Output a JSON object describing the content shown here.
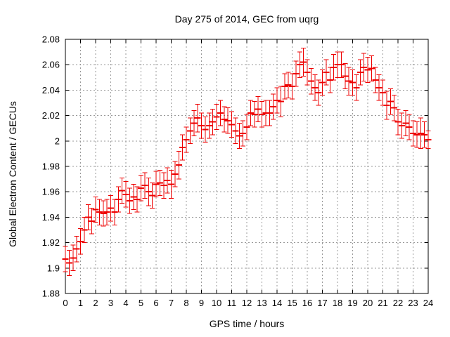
{
  "page": {
    "background": "#ffffff"
  },
  "chart_data": {
    "type": "errorbar",
    "title": "Day 275 of 2014, GEC from uqrg",
    "xlabel": "GPS time / hours",
    "ylabel": "Global Electron Content / GECUs",
    "xlim": [
      0,
      24
    ],
    "ylim": [
      1.88,
      2.08
    ],
    "grid": true,
    "legend": "none",
    "colors": {
      "series": "#ee0000",
      "grid": "#999999",
      "axis": "#000000",
      "text": "#000000"
    },
    "xticks": [
      0,
      1,
      2,
      3,
      4,
      5,
      6,
      7,
      8,
      9,
      10,
      11,
      12,
      13,
      14,
      15,
      16,
      17,
      18,
      19,
      20,
      21,
      22,
      23,
      24
    ],
    "xtick_labels": [
      "0",
      "1",
      "2",
      "3",
      "4",
      "5",
      "6",
      "7",
      "8",
      "9",
      "10",
      "11",
      "12",
      "13",
      "14",
      "15",
      "16",
      "17",
      "18",
      "19",
      "20",
      "21",
      "22",
      "23",
      "24"
    ],
    "yticks": [
      1.88,
      1.9,
      1.92,
      1.94,
      1.96,
      1.98,
      2,
      2.02,
      2.04,
      2.06,
      2.08
    ],
    "ytick_labels": [
      "1.88",
      "1.9",
      "1.92",
      "1.94",
      "1.96",
      "1.98",
      "2",
      "2.02",
      "2.04",
      "2.06",
      "2.08"
    ],
    "series": [
      {
        "name": "GEC",
        "x": [
          0,
          0.25,
          0.5,
          0.75,
          1,
          1.25,
          1.5,
          1.75,
          2,
          2.25,
          2.5,
          2.75,
          3,
          3.25,
          3.5,
          3.75,
          4,
          4.25,
          4.5,
          4.75,
          5,
          5.25,
          5.5,
          5.75,
          6,
          6.25,
          6.5,
          6.75,
          7,
          7.25,
          7.5,
          7.75,
          8,
          8.25,
          8.5,
          8.75,
          9,
          9.25,
          9.5,
          9.75,
          10,
          10.25,
          10.5,
          10.75,
          11,
          11.25,
          11.5,
          11.75,
          12,
          12.25,
          12.5,
          12.75,
          13,
          13.25,
          13.5,
          13.75,
          14,
          14.25,
          14.5,
          14.75,
          15,
          15.25,
          15.5,
          15.75,
          16,
          16.25,
          16.5,
          16.75,
          17,
          17.25,
          17.5,
          17.75,
          18,
          18.25,
          18.5,
          18.75,
          19,
          19.25,
          19.5,
          19.75,
          20,
          20.25,
          20.5,
          20.75,
          21,
          21.25,
          21.5,
          21.75,
          22,
          22.25,
          22.5,
          22.75,
          23,
          23.25,
          23.5,
          23.75,
          24
        ],
        "y": [
          1.907,
          1.904,
          1.908,
          1.915,
          1.921,
          1.93,
          1.94,
          1.937,
          1.946,
          1.944,
          1.943,
          1.944,
          1.947,
          1.944,
          1.954,
          1.961,
          1.958,
          1.953,
          1.956,
          1.954,
          1.963,
          1.965,
          1.96,
          1.957,
          1.966,
          1.967,
          1.965,
          1.969,
          1.966,
          1.974,
          1.981,
          1.995,
          2.001,
          2.008,
          2.014,
          2.018,
          2.012,
          2.009,
          2.012,
          2.015,
          2.019,
          2.022,
          2.017,
          2.016,
          2.013,
          2.008,
          2.004,
          2.006,
          2.011,
          2.022,
          2.021,
          2.025,
          2.021,
          2.022,
          2.022,
          2.027,
          2.032,
          2.031,
          2.043,
          2.044,
          2.043,
          2.053,
          2.06,
          2.062,
          2.054,
          2.047,
          2.042,
          2.038,
          2.046,
          2.054,
          2.048,
          2.058,
          2.06,
          2.06,
          2.051,
          2.047,
          2.046,
          2.042,
          2.054,
          2.058,
          2.056,
          2.057,
          2.048,
          2.042,
          2.038,
          2.028,
          2.031,
          2.026,
          2.015,
          2.012,
          2.014,
          2.011,
          2.006,
          2.005,
          2.006,
          2.005,
          2.001
        ],
        "yerr": [
          0.01,
          0.01,
          0.01,
          0.01,
          0.01,
          0.01,
          0.01,
          0.01,
          0.01,
          0.01,
          0.01,
          0.01,
          0.01,
          0.01,
          0.01,
          0.01,
          0.01,
          0.01,
          0.01,
          0.01,
          0.01,
          0.01,
          0.011,
          0.01,
          0.01,
          0.01,
          0.01,
          0.01,
          0.011,
          0.01,
          0.011,
          0.01,
          0.01,
          0.01,
          0.01,
          0.011,
          0.01,
          0.01,
          0.01,
          0.01,
          0.01,
          0.01,
          0.01,
          0.01,
          0.01,
          0.01,
          0.01,
          0.01,
          0.01,
          0.01,
          0.01,
          0.01,
          0.01,
          0.01,
          0.01,
          0.01,
          0.01,
          0.012,
          0.01,
          0.01,
          0.01,
          0.01,
          0.01,
          0.011,
          0.01,
          0.01,
          0.01,
          0.01,
          0.01,
          0.01,
          0.01,
          0.01,
          0.01,
          0.01,
          0.01,
          0.011,
          0.01,
          0.01,
          0.01,
          0.011,
          0.01,
          0.01,
          0.01,
          0.01,
          0.01,
          0.011,
          0.01,
          0.01,
          0.01,
          0.01,
          0.01,
          0.01,
          0.01,
          0.01,
          0.012,
          0.01,
          0.007
        ]
      }
    ]
  }
}
